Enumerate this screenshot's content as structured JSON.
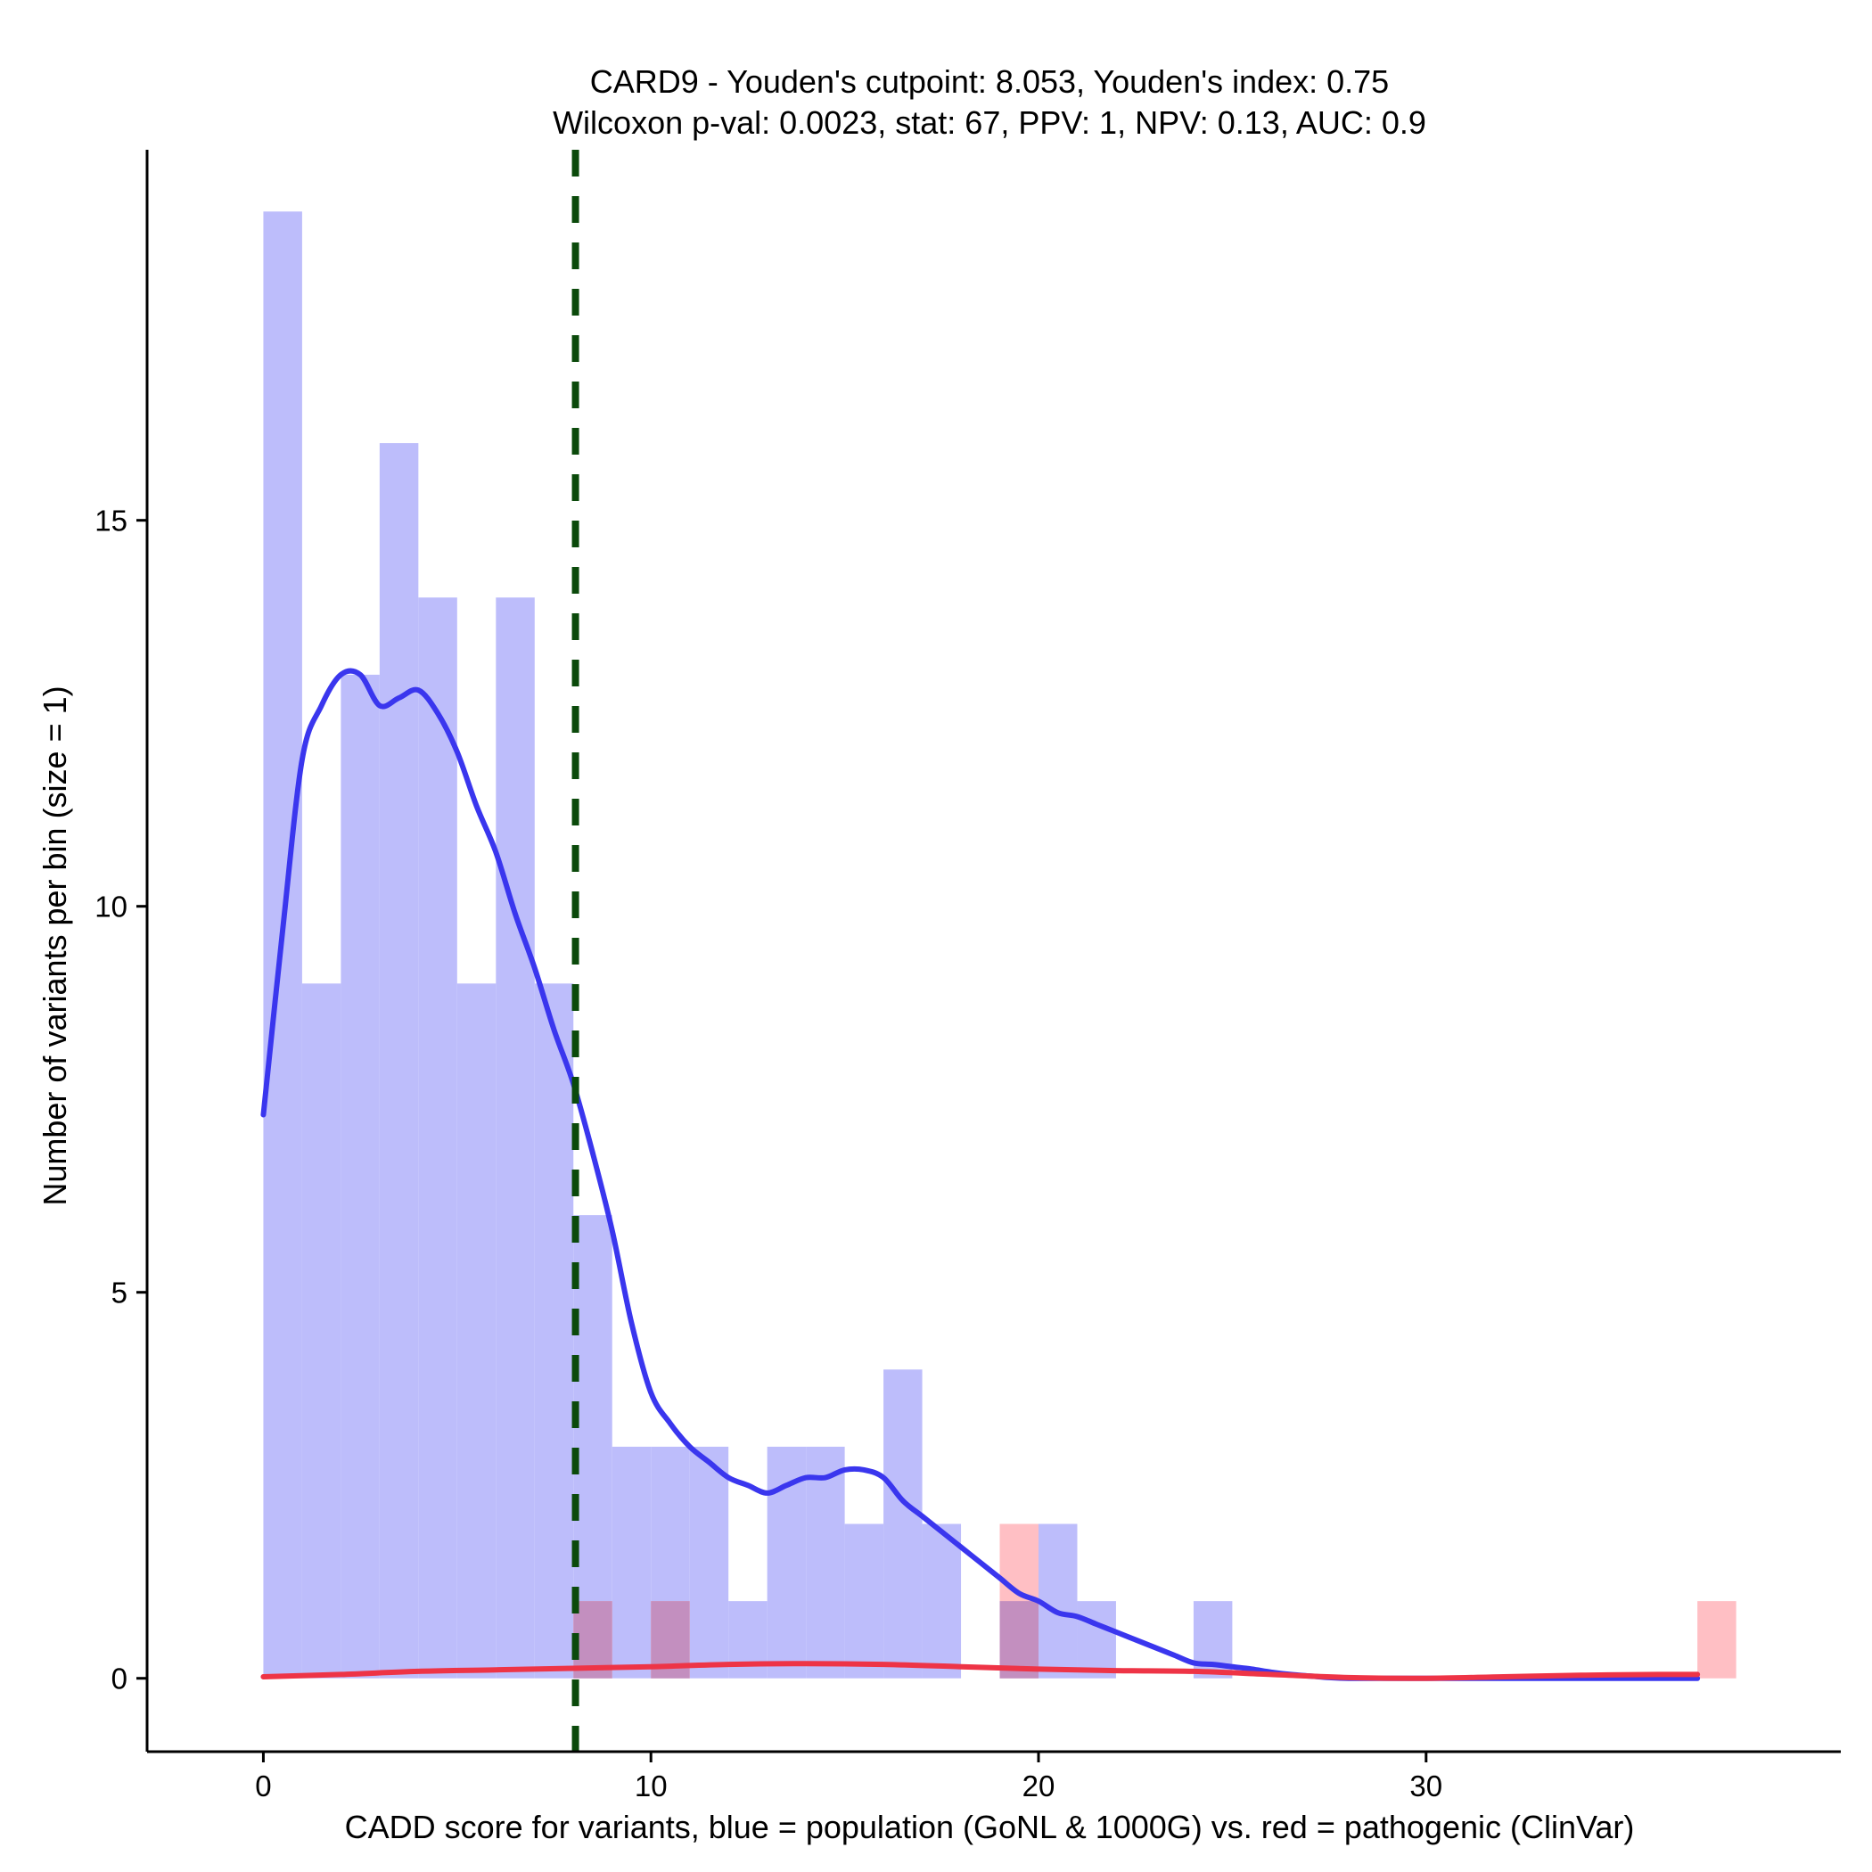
{
  "chart_data": {
    "type": "bar",
    "title": "CARD9 - Youden's cutpoint: 8.053, Youden's index: 0.75",
    "subtitle": "Wilcoxon p-val: 0.0023, stat: 67, PPV: 1, NPV: 0.13, AUC: 0.9",
    "xlabel": "CADD score for variants, blue = population (GoNL & 1000G) vs. red = pathogenic (ClinVar)",
    "ylabel": "Number of variants per bin (size = 1)",
    "xlim": [
      -3,
      40.7
    ],
    "ylim": [
      -0.95,
      19.8
    ],
    "xticks": [
      0,
      10,
      20,
      30
    ],
    "yticks": [
      0,
      5,
      10,
      15
    ],
    "bin_size": 1,
    "grid": false,
    "cutpoint": 8.053,
    "colors": {
      "population_bar": "#bdbdfb",
      "pathogenic_bar": "#ffbfc4",
      "overlap_bar": "#c38fbf",
      "population_density": "#3a36ee",
      "pathogenic_density": "#ee3446",
      "cutpoint_line": "#0b4a0b"
    },
    "series": [
      {
        "name": "population",
        "bins": [
          [
            0,
            19
          ],
          [
            1,
            9
          ],
          [
            2,
            13
          ],
          [
            3,
            16
          ],
          [
            4,
            14
          ],
          [
            5,
            9
          ],
          [
            6,
            14
          ],
          [
            7,
            9
          ],
          [
            8,
            6
          ],
          [
            9,
            3
          ],
          [
            10,
            3
          ],
          [
            11,
            3
          ],
          [
            12,
            1
          ],
          [
            13,
            3
          ],
          [
            14,
            3
          ],
          [
            15,
            2
          ],
          [
            16,
            4
          ],
          [
            17,
            2
          ],
          [
            19,
            1
          ],
          [
            20,
            2
          ],
          [
            21,
            1
          ],
          [
            24,
            1
          ]
        ]
      },
      {
        "name": "pathogenic",
        "bins": [
          [
            8,
            1
          ],
          [
            10,
            1
          ],
          [
            19,
            2
          ],
          [
            37,
            1
          ]
        ]
      }
    ],
    "density_lines": [
      {
        "name": "population",
        "x": [
          0,
          0.5,
          1,
          1.5,
          2,
          2.5,
          3,
          3.5,
          4,
          4.5,
          5,
          5.5,
          6,
          6.5,
          7,
          7.5,
          8,
          8.5,
          9,
          9.5,
          10,
          10.5,
          11,
          11.5,
          12,
          12.5,
          13,
          13.5,
          14,
          14.5,
          15,
          15.5,
          16,
          16.5,
          17,
          17.5,
          18,
          18.5,
          19,
          19.5,
          20,
          20.5,
          21,
          21.5,
          22,
          22.5,
          23,
          23.5,
          24,
          24.5,
          25,
          25.5,
          26,
          26.5,
          27,
          27.5,
          28,
          29,
          30,
          31,
          32,
          33,
          34,
          35,
          36,
          37
        ],
        "y": [
          7.3,
          9.7,
          11.9,
          12.6,
          13.0,
          13.0,
          12.6,
          12.7,
          12.8,
          12.5,
          12.0,
          11.3,
          10.7,
          9.9,
          9.2,
          8.4,
          7.7,
          6.8,
          5.8,
          4.6,
          3.7,
          3.3,
          3.0,
          2.8,
          2.6,
          2.5,
          2.4,
          2.5,
          2.6,
          2.6,
          2.7,
          2.7,
          2.6,
          2.3,
          2.1,
          1.9,
          1.7,
          1.5,
          1.3,
          1.1,
          1.0,
          0.85,
          0.8,
          0.7,
          0.6,
          0.5,
          0.4,
          0.3,
          0.2,
          0.18,
          0.15,
          0.12,
          0.08,
          0.05,
          0.03,
          0.01,
          0.0,
          0.0,
          0.0,
          0.0,
          0.0,
          0.0,
          0.0,
          0.0,
          0.0,
          0.0
        ]
      },
      {
        "name": "pathogenic",
        "x": [
          0,
          2,
          4,
          6,
          8,
          10,
          12,
          14,
          16,
          18,
          20,
          22,
          24,
          26,
          28,
          30,
          32,
          34,
          36,
          37
        ],
        "y": [
          0.02,
          0.05,
          0.09,
          0.11,
          0.13,
          0.15,
          0.18,
          0.19,
          0.18,
          0.15,
          0.12,
          0.1,
          0.09,
          0.05,
          0.01,
          0.0,
          0.02,
          0.04,
          0.05,
          0.05
        ]
      }
    ]
  }
}
